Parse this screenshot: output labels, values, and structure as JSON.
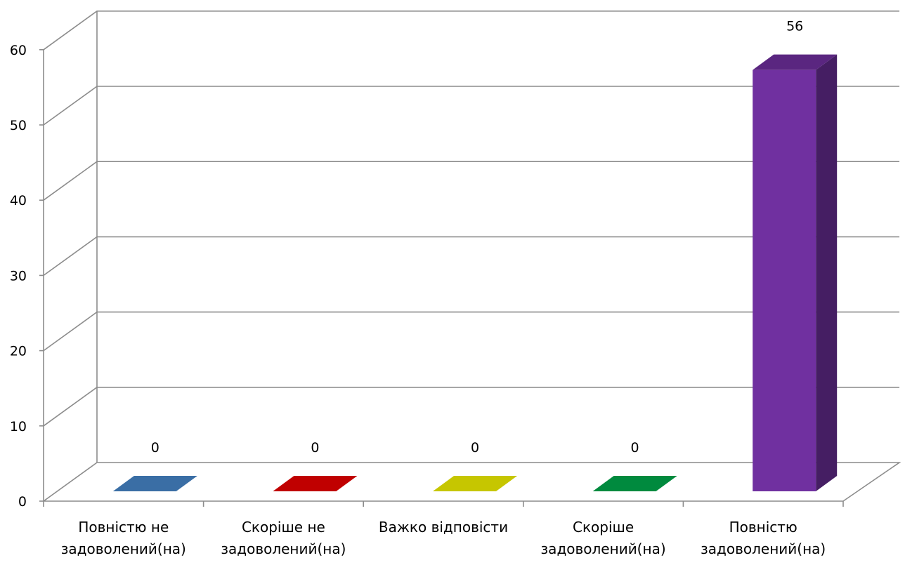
{
  "chart_data": {
    "type": "bar",
    "style": "3d-column",
    "title": "",
    "xlabel": "",
    "ylabel": "",
    "ylim": [
      0,
      60
    ],
    "yticks": [
      0,
      10,
      20,
      30,
      40,
      50,
      60
    ],
    "grid": true,
    "legend": "none",
    "categories": [
      [
        "Повністю не",
        "задоволений(на)"
      ],
      [
        "Скоріше не",
        "задоволений(на)"
      ],
      [
        "Важко відповісти"
      ],
      [
        "Скоріше",
        "задоволений(на)"
      ],
      [
        "Повністю",
        "задоволений(на)"
      ]
    ],
    "values": [
      0,
      0,
      0,
      0,
      56
    ],
    "data_labels": [
      "0",
      "0",
      "0",
      "0",
      "56"
    ],
    "colors": [
      "#3a6ea5",
      "#c00000",
      "#c6c600",
      "#008a3e",
      "#7030a0"
    ]
  }
}
